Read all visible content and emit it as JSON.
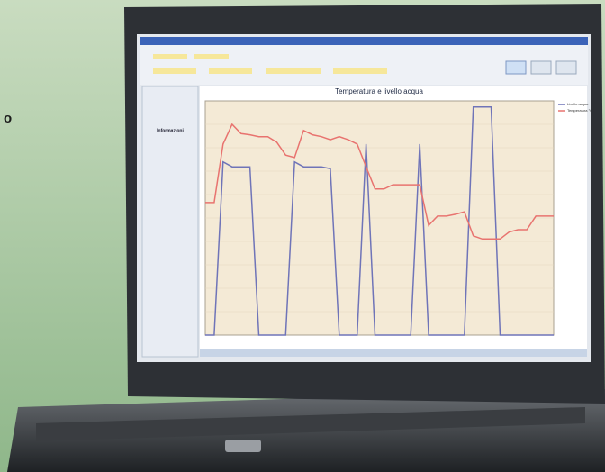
{
  "fragment": "o",
  "panel": {
    "heading": "Informazioni"
  },
  "chart_data": {
    "type": "line",
    "title": "Temperatura e livello acqua",
    "categories": [
      null,
      null,
      null,
      null,
      null,
      null,
      null,
      null,
      null,
      null,
      null,
      null,
      null,
      null,
      null,
      null,
      null,
      null,
      null,
      null,
      null,
      null,
      null,
      null,
      null,
      null,
      null,
      null,
      null,
      null,
      null,
      null,
      null,
      null,
      null,
      null,
      null,
      null,
      null,
      null
    ],
    "series": [
      {
        "name": "Livello acqua",
        "color": "#6f74b8",
        "values": [
          0,
          0,
          28.1,
          27.3,
          27.3,
          27.3,
          0,
          0,
          0,
          0,
          28.1,
          27.3,
          27.3,
          27.3,
          27,
          0,
          0,
          0,
          31,
          0,
          0,
          0,
          0,
          0,
          31,
          0,
          0,
          0,
          0,
          0,
          37,
          37,
          37,
          0,
          0,
          0,
          0,
          0,
          0,
          0
        ]
      },
      {
        "name": "Temperatura °C",
        "color": "#e8736f",
        "values": [
          21.5,
          21.5,
          31,
          34.2,
          32.7,
          32.5,
          32.2,
          32.2,
          31.3,
          29.2,
          28.8,
          33.2,
          32.5,
          32.2,
          31.7,
          32.2,
          31.7,
          31,
          27.3,
          23.7,
          23.7,
          24.4,
          24.4,
          24.4,
          24.4,
          17.8,
          19.3,
          19.3,
          19.6,
          20,
          16.1,
          15.6,
          15.6,
          15.6,
          16.7,
          17.1,
          17.1,
          19.3,
          19.3,
          19.3
        ]
      }
    ],
    "ylim": [
      0,
      38
    ],
    "grid": true,
    "legend": "top-right"
  }
}
